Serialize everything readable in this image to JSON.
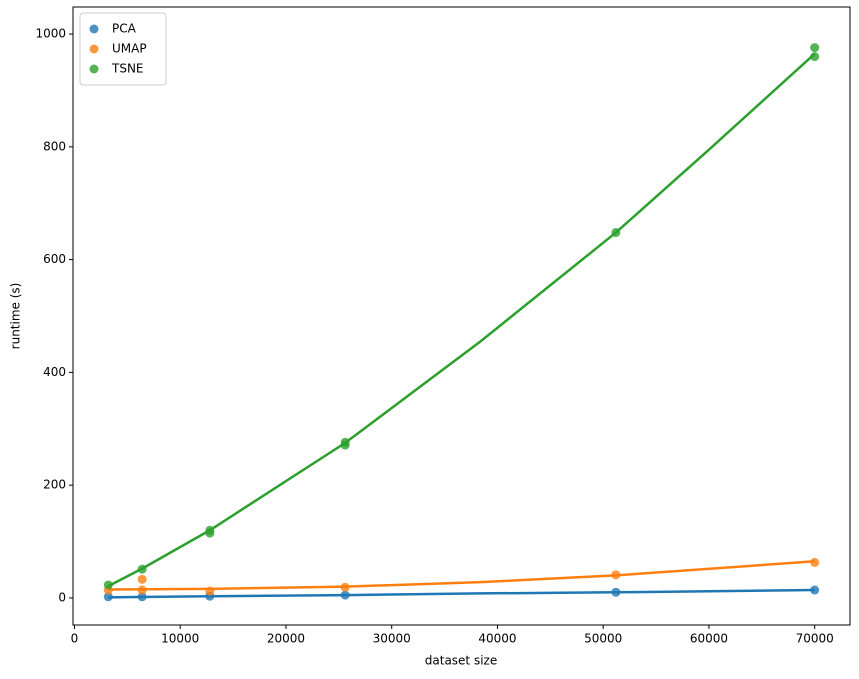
{
  "chart_data": {
    "type": "scatter",
    "x_label": "dataset size",
    "y_label": "runtime (s)",
    "xlim": [
      -140,
      73340
    ],
    "ylim": [
      -48,
      1048
    ],
    "xticks": [
      0,
      10000,
      20000,
      30000,
      40000,
      50000,
      60000,
      70000
    ],
    "yticks": [
      0,
      200,
      400,
      600,
      800,
      1000
    ],
    "legend": "upper-left",
    "grid": false,
    "series": [
      {
        "name": "PCA",
        "color": "#1f77b4",
        "x": [
          3200,
          6400,
          12800,
          25600,
          51200,
          70000
        ],
        "values": [
          2,
          2,
          3,
          5,
          10,
          14
        ],
        "fit": {
          "x": [
            3200,
            12800,
            25600,
            38400,
            51200,
            70000
          ],
          "values": [
            1,
            3,
            5,
            8,
            10,
            14
          ]
        }
      },
      {
        "name": "UMAP",
        "color": "#ff7f0e",
        "x": [
          3200,
          6400,
          6400,
          12800,
          25600,
          51200,
          70000
        ],
        "values": [
          14,
          33,
          14,
          12,
          19,
          41,
          63
        ],
        "fit": {
          "x": [
            3200,
            12800,
            25600,
            38400,
            51200,
            70000
          ],
          "values": [
            15,
            16,
            20,
            28,
            40,
            65
          ]
        }
      },
      {
        "name": "TSNE",
        "color": "#2ca02c",
        "x": [
          3200,
          6400,
          12800,
          12800,
          25600,
          25600,
          51200,
          70000,
          70000
        ],
        "values": [
          23,
          51,
          115,
          120,
          271,
          276,
          648,
          960,
          976
        ],
        "fit": {
          "x": [
            3200,
            6400,
            12800,
            25600,
            38400,
            51200,
            60000,
            70000
          ],
          "values": [
            21,
            52,
            120,
            275,
            455,
            648,
            795,
            965
          ]
        }
      }
    ]
  }
}
